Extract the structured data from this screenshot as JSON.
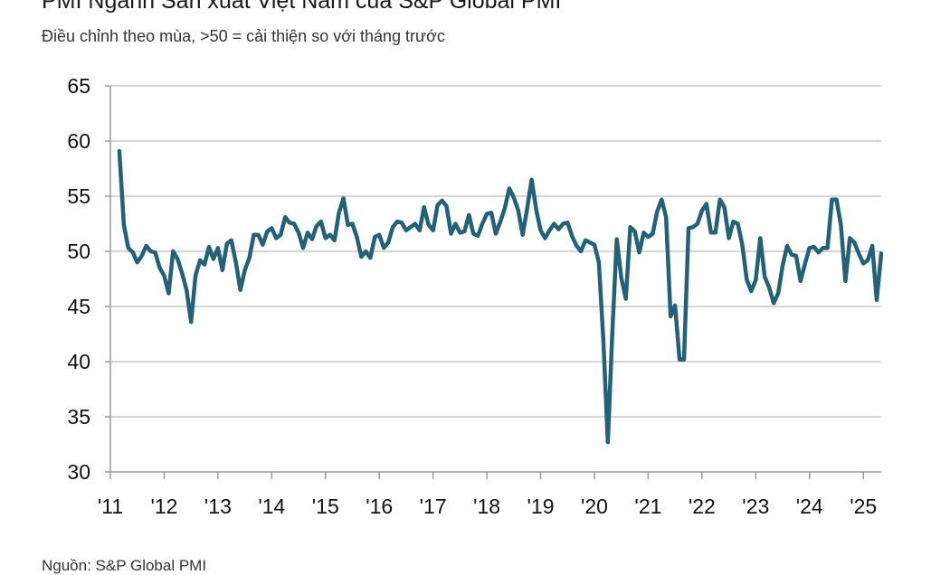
{
  "title": "PMI Ngành Sản xuất Việt Nam của S&P Global PMI",
  "subtitle": "Điều chỉnh theo mùa, >50 = cải thiện so với tháng trước",
  "source": "Nguồn: S&P Global PMI",
  "colors": {
    "line": "#236178",
    "grid": "#c8c8c8",
    "axis": "#9a9a9a"
  },
  "chart_data": {
    "type": "line",
    "title": "PMI Ngành Sản xuất Việt Nam của S&P Global PMI",
    "subtitle": "Điều chỉnh theo mùa, >50 = cải thiện so với tháng trước",
    "xlabel": "",
    "ylabel": "",
    "ylim": [
      30,
      65
    ],
    "yticks": [
      30,
      35,
      40,
      45,
      50,
      55,
      60,
      65
    ],
    "xtick_labels": [
      "'11",
      "'12",
      "'13",
      "'14",
      "'15",
      "'16",
      "'17",
      "'18",
      "'19",
      "'20",
      "'21",
      "'22",
      "'23",
      "'24",
      "'25"
    ],
    "xlim": [
      "2011-01",
      "2025-05"
    ],
    "grid": "horizontal",
    "series": [
      {
        "x": [
          "2011-03",
          "2011-04",
          "2011-05",
          "2011-06",
          "2011-07",
          "2011-08",
          "2011-09",
          "2011-10",
          "2011-11",
          "2011-12",
          "2012-01",
          "2012-02",
          "2012-03",
          "2012-04",
          "2012-05",
          "2012-06",
          "2012-07",
          "2012-08",
          "2012-09",
          "2012-10",
          "2012-11",
          "2012-12",
          "2013-01",
          "2013-02",
          "2013-03",
          "2013-04",
          "2013-05",
          "2013-06",
          "2013-07",
          "2013-08",
          "2013-09",
          "2013-10",
          "2013-11",
          "2013-12",
          "2014-01",
          "2014-02",
          "2014-03",
          "2014-04",
          "2014-05",
          "2014-06",
          "2014-07",
          "2014-08",
          "2014-09",
          "2014-10",
          "2014-11",
          "2014-12",
          "2015-01",
          "2015-02",
          "2015-03",
          "2015-04",
          "2015-05",
          "2015-06",
          "2015-07",
          "2015-08",
          "2015-09",
          "2015-10",
          "2015-11",
          "2015-12",
          "2016-01",
          "2016-02",
          "2016-03",
          "2016-04",
          "2016-05",
          "2016-06",
          "2016-07",
          "2016-08",
          "2016-09",
          "2016-10",
          "2016-11",
          "2016-12",
          "2017-01",
          "2017-02",
          "2017-03",
          "2017-04",
          "2017-05",
          "2017-06",
          "2017-07",
          "2017-08",
          "2017-09",
          "2017-10",
          "2017-11",
          "2017-12",
          "2018-01",
          "2018-02",
          "2018-03",
          "2018-04",
          "2018-05",
          "2018-06",
          "2018-07",
          "2018-08",
          "2018-09",
          "2018-10",
          "2018-11",
          "2018-12",
          "2019-01",
          "2019-02",
          "2019-03",
          "2019-04",
          "2019-05",
          "2019-06",
          "2019-07",
          "2019-08",
          "2019-09",
          "2019-10",
          "2019-11",
          "2019-12",
          "2020-01",
          "2020-02",
          "2020-03",
          "2020-04",
          "2020-05",
          "2020-06",
          "2020-07",
          "2020-08",
          "2020-09",
          "2020-10",
          "2020-11",
          "2020-12",
          "2021-01",
          "2021-02",
          "2021-03",
          "2021-04",
          "2021-05",
          "2021-06",
          "2021-07",
          "2021-08",
          "2021-09",
          "2021-10",
          "2021-11",
          "2021-12",
          "2022-01",
          "2022-02",
          "2022-03",
          "2022-04",
          "2022-05",
          "2022-06",
          "2022-07",
          "2022-08",
          "2022-09",
          "2022-10",
          "2022-11",
          "2022-12",
          "2023-01",
          "2023-02",
          "2023-03",
          "2023-04",
          "2023-05",
          "2023-06",
          "2023-07",
          "2023-08",
          "2023-09",
          "2023-10",
          "2023-11",
          "2023-12",
          "2024-01",
          "2024-02",
          "2024-03",
          "2024-04",
          "2024-05",
          "2024-06",
          "2024-07",
          "2024-08",
          "2024-09",
          "2024-10",
          "2024-11",
          "2024-12",
          "2025-01",
          "2025-02",
          "2025-03",
          "2025-04",
          "2025-05"
        ],
        "values": [
          59.1,
          52.4,
          50.3,
          49.9,
          49.0,
          49.6,
          50.5,
          50.0,
          49.9,
          48.5,
          47.8,
          46.2,
          50.0,
          49.3,
          48.0,
          46.5,
          43.6,
          47.8,
          49.2,
          48.8,
          50.4,
          49.3,
          50.3,
          48.3,
          50.7,
          51.0,
          49.0,
          46.5,
          48.3,
          49.4,
          51.5,
          51.5,
          50.6,
          51.8,
          52.1,
          51.2,
          51.5,
          53.1,
          52.6,
          52.5,
          51.7,
          50.3,
          51.7,
          51.1,
          52.3,
          52.7,
          51.2,
          51.5,
          51.0,
          53.5,
          54.8,
          52.4,
          52.5,
          51.3,
          49.5,
          50.0,
          49.4,
          51.3,
          51.5,
          50.3,
          50.8,
          52.2,
          52.7,
          52.6,
          51.9,
          52.2,
          52.5,
          51.9,
          54.0,
          52.4,
          51.9,
          54.2,
          54.6,
          54.1,
          51.6,
          52.5,
          51.7,
          51.8,
          53.3,
          51.6,
          51.4,
          52.5,
          53.4,
          53.5,
          51.6,
          52.7,
          53.9,
          55.7,
          54.9,
          53.7,
          51.5,
          53.9,
          56.5,
          53.8,
          51.9,
          51.2,
          51.9,
          52.5,
          52.0,
          52.5,
          52.6,
          51.4,
          50.5,
          50.0,
          51.0,
          50.8,
          50.6,
          49.0,
          41.9,
          32.7,
          42.7,
          51.1,
          47.6,
          45.7,
          52.2,
          51.8,
          49.9,
          51.7,
          51.3,
          51.6,
          53.6,
          54.7,
          53.1,
          44.1,
          45.1,
          40.2,
          40.2,
          52.1,
          52.2,
          52.5,
          53.7,
          54.3,
          51.7,
          51.7,
          54.7,
          54.0,
          51.2,
          52.7,
          52.5,
          50.6,
          47.4,
          46.4,
          47.4,
          51.2,
          47.7,
          46.7,
          45.3,
          46.2,
          48.7,
          50.5,
          49.7,
          49.6,
          47.3,
          48.9,
          50.3,
          50.4,
          49.9,
          50.3,
          50.3,
          54.7,
          54.7,
          52.4,
          47.3,
          51.2,
          50.8,
          49.8,
          48.9,
          49.2,
          50.5,
          45.6,
          49.8
        ]
      }
    ]
  }
}
